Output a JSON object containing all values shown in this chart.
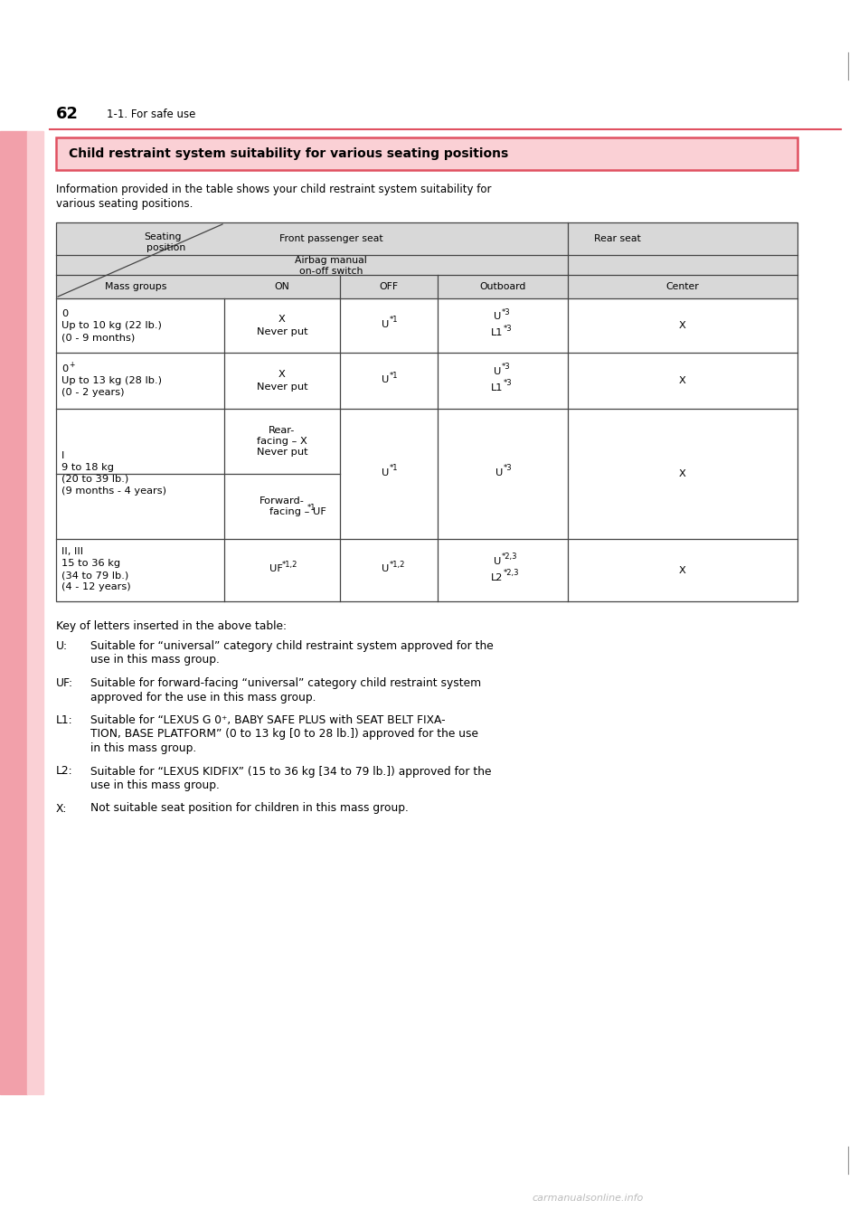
{
  "page_number": "62",
  "section": "1-1. For safe use",
  "title": "Child restraint system suitability for various seating positions",
  "intro_line1": "Information provided in the table shows your child restraint system suitability for",
  "intro_line2": "various seating positions.",
  "key_title": "Key of letters inserted in the above table:",
  "colors": {
    "background": "#ffffff",
    "pink_bar_dark": "#f2a0aa",
    "pink_bar_light": "#fad0d5",
    "title_bg": "#fad0d5",
    "title_border": "#e05060",
    "table_header_bg": "#d8d8d8",
    "table_border": "#444444",
    "red_line": "#e05060",
    "text_color": "#000000"
  }
}
